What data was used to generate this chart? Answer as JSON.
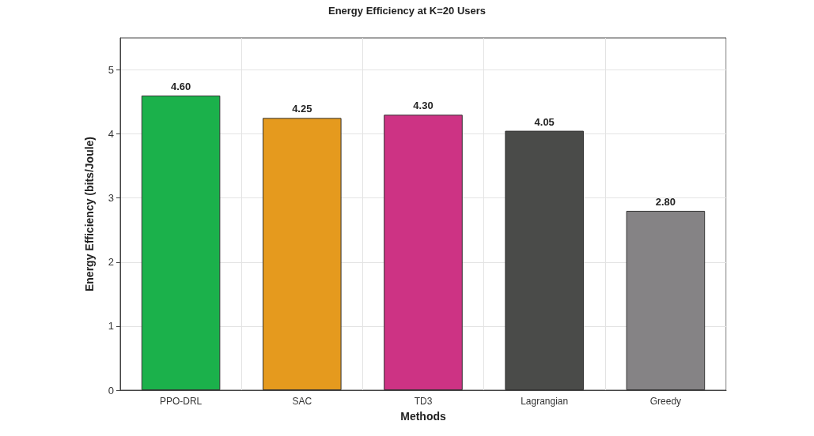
{
  "chart_data": {
    "type": "bar",
    "title": "Energy Efficiency at K=20 Users",
    "xlabel": "Methods",
    "ylabel": "Energy Efficiency (bits/Joule)",
    "categories": [
      "PPO-DRL",
      "SAC",
      "TD3",
      "Lagrangian",
      "Greedy"
    ],
    "values": [
      4.6,
      4.25,
      4.3,
      4.05,
      2.8
    ],
    "colors": [
      "#1bb14b",
      "#e59a1e",
      "#cd3384",
      "#4a4b49",
      "#858385"
    ],
    "value_labels": [
      "4.60",
      "4.25",
      "4.30",
      "4.05",
      "2.80"
    ],
    "ylim": [
      0,
      5.5
    ],
    "yticks": [
      0,
      1,
      2,
      3,
      4,
      5
    ],
    "grid": true
  }
}
